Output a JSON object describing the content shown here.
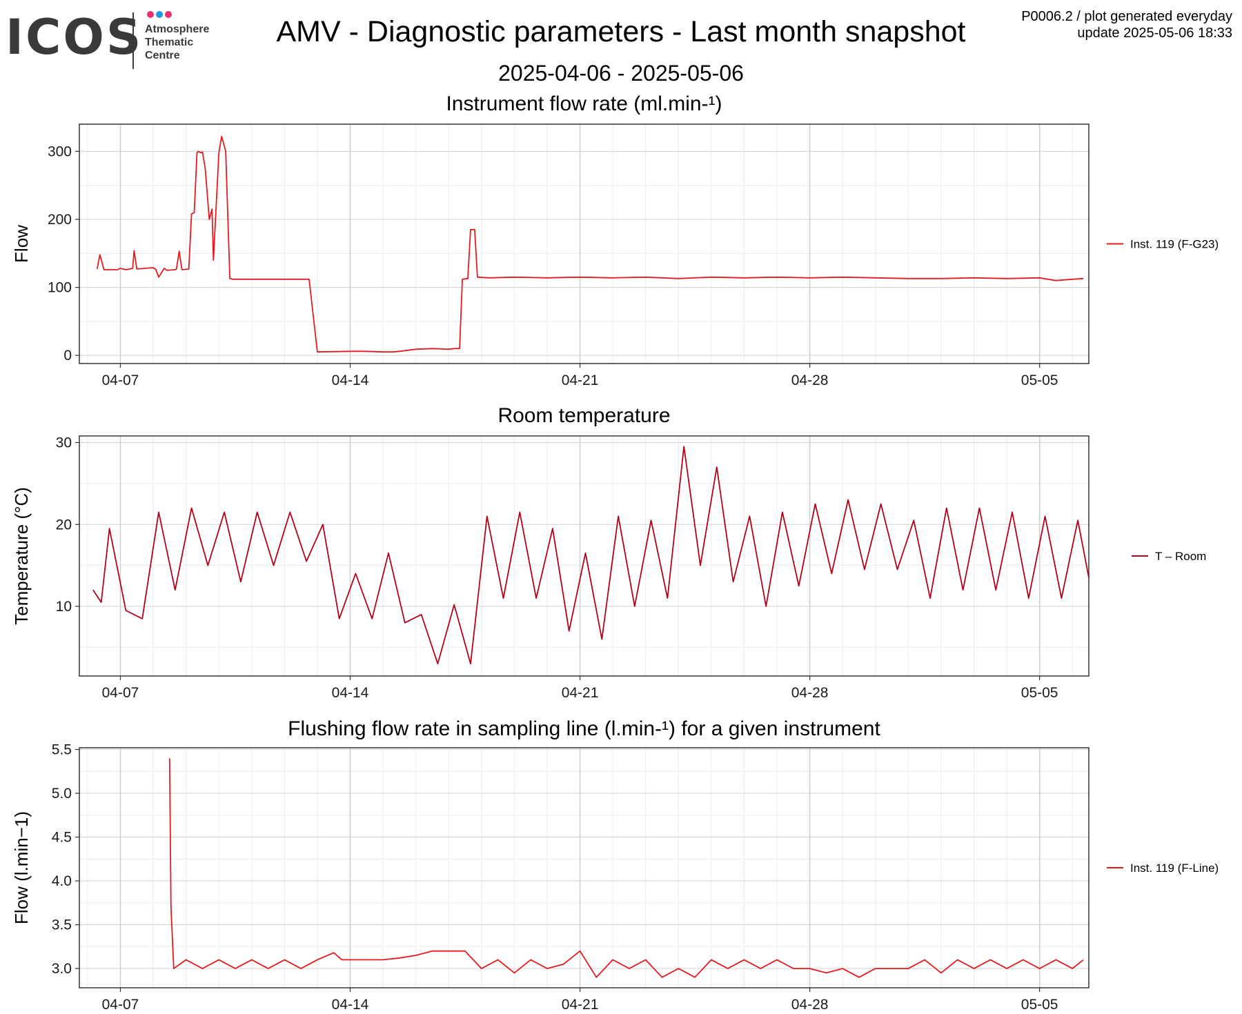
{
  "header": {
    "logo_text": "ICOS",
    "logo_sub": [
      "Atmosphere",
      "Thematic",
      "Centre"
    ],
    "title": "AMV - Diagnostic parameters - Last month snapshot",
    "subtitle": "2025-04-06 - 2025-05-06",
    "meta_line1": "P0006.2 / plot generated everyday",
    "meta_line2": "update  2025-05-06 18:33"
  },
  "colors": {
    "series_red": "#e41a1c",
    "temp_red": "#b3001b",
    "grid_major": "#d0d0d0",
    "grid_minor": "#ececec",
    "logo_pink": "#e8336d",
    "logo_blue": "#1f9ae0"
  },
  "chart_data": [
    {
      "type": "line",
      "title": "Instrument flow rate (ml.min-¹)",
      "xlabel": "",
      "ylabel": "Flow",
      "x_tick_labels": [
        "04-07",
        "04-14",
        "04-21",
        "04-28",
        "05-05"
      ],
      "xlim": [
        "2025-04-05T18:00",
        "2025-05-06T12:00"
      ],
      "ylim": [
        -12,
        340
      ],
      "y_ticks": [
        0,
        100,
        200,
        300
      ],
      "grid": true,
      "legend_position": "right",
      "series": [
        {
          "name": "Inst. 119 (F-G23)",
          "color": "#e41a1c",
          "x": [
            "2025-04-06 07:00",
            "2025-04-06 09:00",
            "2025-04-06 12:00",
            "2025-04-06 22:00",
            "2025-04-07 00:00",
            "2025-04-07 04:00",
            "2025-04-07 09:00",
            "2025-04-07 10:00",
            "2025-04-07 12:00",
            "2025-04-08 00:00",
            "2025-04-08 02:00",
            "2025-04-08 04:00",
            "2025-04-08 08:00",
            "2025-04-08 10:00",
            "2025-04-08 16:00",
            "2025-04-08 17:00",
            "2025-04-08 19:00",
            "2025-04-08 21:00",
            "2025-04-09 02:00",
            "2025-04-09 04:00",
            "2025-04-09 06:00",
            "2025-04-09 08:00",
            "2025-04-09 09:00",
            "2025-04-09 11:00",
            "2025-04-09 12:00",
            "2025-04-09 14:00",
            "2025-04-09 17:00",
            "2025-04-09 19:00",
            "2025-04-09 20:00",
            "2025-04-10 00:00",
            "2025-04-10 02:00",
            "2025-04-10 05:00",
            "2025-04-10 08:00",
            "2025-04-10 10:00",
            "2025-04-11 02:00",
            "2025-04-11 20:00",
            "2025-04-12 06:00",
            "2025-04-12 08:00",
            "2025-04-12 12:00",
            "2025-04-12 18:00",
            "2025-04-13 00:00",
            "2025-04-14 00:00",
            "2025-04-14 12:00",
            "2025-04-15 00:00",
            "2025-04-15 06:00",
            "2025-04-15 07:00",
            "2025-04-15 12:00",
            "2025-04-16 00:00",
            "2025-04-16 12:00",
            "2025-04-17 00:00",
            "2025-04-17 04:00",
            "2025-04-17 08:00",
            "2025-04-17 10:00",
            "2025-04-17 14:00",
            "2025-04-17 16:00",
            "2025-04-17 19:00",
            "2025-04-17 21:00",
            "2025-04-18 06:00",
            "2025-04-19 00:00",
            "2025-04-20 00:00",
            "2025-04-21 00:00",
            "2025-04-22 00:00",
            "2025-04-23 00:00",
            "2025-04-24 00:00",
            "2025-04-25 00:00",
            "2025-04-26 00:00",
            "2025-04-27 00:00",
            "2025-04-28 00:00",
            "2025-04-29 00:00",
            "2025-04-30 00:00",
            "2025-05-01 00:00",
            "2025-05-02 00:00",
            "2025-05-03 00:00",
            "2025-05-04 00:00",
            "2025-05-05 00:00",
            "2025-05-05 12:00",
            "2025-05-06 00:00",
            "2025-05-06 08:00"
          ],
          "values": [
            127,
            148,
            126,
            126,
            128,
            126,
            128,
            154,
            127,
            129,
            126,
            115,
            128,
            125,
            126,
            127,
            153,
            126,
            127,
            208,
            210,
            298,
            300,
            298,
            299,
            275,
            200,
            215,
            140,
            298,
            322,
            300,
            113,
            112,
            112,
            112,
            112,
            112,
            112,
            112,
            5,
            6,
            6,
            5,
            5,
            5,
            6,
            9,
            10,
            9,
            10,
            10,
            112,
            113,
            185,
            185,
            115,
            114,
            115,
            114,
            115,
            114,
            115,
            113,
            115,
            114,
            115,
            114,
            115,
            114,
            113,
            113,
            114,
            113,
            114,
            110,
            112,
            113
          ]
        }
      ]
    },
    {
      "type": "line",
      "title": "Room temperature",
      "xlabel": "",
      "ylabel": "Temperature (°C)",
      "x_tick_labels": [
        "04-07",
        "04-14",
        "04-21",
        "04-28",
        "05-05"
      ],
      "xlim": [
        "2025-04-05T18:00",
        "2025-05-06T12:00"
      ],
      "ylim": [
        1.5,
        30.8
      ],
      "y_ticks": [
        10,
        20,
        30
      ],
      "grid": true,
      "legend_position": "right",
      "series": [
        {
          "name": "T – Room",
          "color": "#b3001b",
          "x": [
            "2025-04-06 04:00",
            "2025-04-06 10:00",
            "2025-04-06 16:00",
            "2025-04-07 04:00",
            "2025-04-07 16:00",
            "2025-04-08 04:00",
            "2025-04-08 16:00",
            "2025-04-09 04:00",
            "2025-04-09 16:00",
            "2025-04-10 04:00",
            "2025-04-10 16:00",
            "2025-04-11 04:00",
            "2025-04-11 16:00",
            "2025-04-12 04:00",
            "2025-04-12 16:00",
            "2025-04-13 04:00",
            "2025-04-13 16:00",
            "2025-04-14 04:00",
            "2025-04-14 16:00",
            "2025-04-15 04:00",
            "2025-04-15 16:00",
            "2025-04-16 04:00",
            "2025-04-16 16:00",
            "2025-04-17 04:00",
            "2025-04-17 16:00",
            "2025-04-18 04:00",
            "2025-04-18 16:00",
            "2025-04-19 04:00",
            "2025-04-19 16:00",
            "2025-04-20 04:00",
            "2025-04-20 16:00",
            "2025-04-21 04:00",
            "2025-04-21 16:00",
            "2025-04-22 04:00",
            "2025-04-22 16:00",
            "2025-04-23 04:00",
            "2025-04-23 16:00",
            "2025-04-24 04:00",
            "2025-04-24 16:00",
            "2025-04-25 04:00",
            "2025-04-25 16:00",
            "2025-04-26 04:00",
            "2025-04-26 16:00",
            "2025-04-27 04:00",
            "2025-04-27 16:00",
            "2025-04-28 04:00",
            "2025-04-28 16:00",
            "2025-04-29 04:00",
            "2025-04-29 16:00",
            "2025-04-30 04:00",
            "2025-04-30 16:00",
            "2025-05-01 04:00",
            "2025-05-01 16:00",
            "2025-05-02 04:00",
            "2025-05-02 16:00",
            "2025-05-03 04:00",
            "2025-05-03 16:00",
            "2025-05-04 04:00",
            "2025-05-04 16:00",
            "2025-05-05 04:00",
            "2025-05-05 16:00",
            "2025-05-06 04:00",
            "2025-05-06 12:00"
          ],
          "values": [
            12,
            10.5,
            19.5,
            9.5,
            8.5,
            21.5,
            12,
            22,
            15,
            21.5,
            13,
            21.5,
            15,
            21.5,
            15.5,
            20,
            8.5,
            14,
            8.5,
            16.5,
            8,
            9,
            3,
            10.2,
            3,
            21,
            11,
            21.5,
            11,
            19.5,
            7,
            16.5,
            6,
            21,
            10,
            20.5,
            11,
            29.5,
            15,
            27,
            13,
            21,
            10,
            21.5,
            12.5,
            22.5,
            14,
            23,
            14.5,
            22.5,
            14.5,
            20.5,
            11,
            22,
            12,
            22,
            12,
            21.5,
            11,
            21,
            11,
            20.5,
            13.5
          ]
        }
      ]
    },
    {
      "type": "line",
      "title": "Flushing flow rate in sampling line (l.min-¹) for a given instrument",
      "xlabel": "",
      "ylabel": "Flow (l.min−1)",
      "x_tick_labels": [
        "04-07",
        "04-14",
        "04-21",
        "04-28",
        "05-05"
      ],
      "xlim": [
        "2025-04-05T18:00",
        "2025-05-06T12:00"
      ],
      "ylim": [
        2.78,
        5.52
      ],
      "y_ticks": [
        3.0,
        3.5,
        4.0,
        4.5,
        5.0,
        5.5
      ],
      "grid": true,
      "legend_position": "right",
      "series": [
        {
          "name": "Inst. 119 (F-Line)",
          "color": "#e41a1c",
          "x": [
            "2025-04-08 12:00",
            "2025-04-08 13:00",
            "2025-04-08 15:00",
            "2025-04-09 00:00",
            "2025-04-09 12:00",
            "2025-04-10 00:00",
            "2025-04-10 12:00",
            "2025-04-11 00:00",
            "2025-04-11 12:00",
            "2025-04-12 00:00",
            "2025-04-12 12:00",
            "2025-04-13 00:00",
            "2025-04-13 12:00",
            "2025-04-13 18:00",
            "2025-04-14 00:00",
            "2025-04-14 12:00",
            "2025-04-15 00:00",
            "2025-04-15 12:00",
            "2025-04-16 00:00",
            "2025-04-16 12:00",
            "2025-04-17 00:00",
            "2025-04-17 12:00",
            "2025-04-18 00:00",
            "2025-04-18 12:00",
            "2025-04-19 00:00",
            "2025-04-19 12:00",
            "2025-04-20 00:00",
            "2025-04-20 12:00",
            "2025-04-21 00:00",
            "2025-04-21 12:00",
            "2025-04-22 00:00",
            "2025-04-22 12:00",
            "2025-04-23 00:00",
            "2025-04-23 12:00",
            "2025-04-24 00:00",
            "2025-04-24 12:00",
            "2025-04-25 00:00",
            "2025-04-25 12:00",
            "2025-04-26 00:00",
            "2025-04-26 12:00",
            "2025-04-27 00:00",
            "2025-04-27 12:00",
            "2025-04-28 00:00",
            "2025-04-28 12:00",
            "2025-04-29 00:00",
            "2025-04-29 12:00",
            "2025-04-30 00:00",
            "2025-04-30 12:00",
            "2025-05-01 00:00",
            "2025-05-01 12:00",
            "2025-05-02 00:00",
            "2025-05-02 12:00",
            "2025-05-03 00:00",
            "2025-05-03 12:00",
            "2025-05-04 00:00",
            "2025-05-04 12:00",
            "2025-05-05 00:00",
            "2025-05-05 12:00",
            "2025-05-06 00:00",
            "2025-05-06 08:00"
          ],
          "values": [
            5.4,
            3.7,
            3.0,
            3.1,
            3.0,
            3.1,
            3.0,
            3.1,
            3.0,
            3.1,
            3.0,
            3.1,
            3.18,
            3.1,
            3.1,
            3.1,
            3.1,
            3.12,
            3.15,
            3.2,
            3.2,
            3.2,
            3.0,
            3.1,
            2.95,
            3.1,
            3.0,
            3.05,
            3.2,
            2.9,
            3.1,
            3.0,
            3.1,
            2.9,
            3.0,
            2.9,
            3.1,
            3.0,
            3.1,
            3.0,
            3.1,
            3.0,
            3.0,
            2.95,
            3.0,
            2.9,
            3.0,
            3.0,
            3.0,
            3.1,
            2.95,
            3.1,
            3.0,
            3.1,
            3.0,
            3.1,
            3.0,
            3.1,
            3.0,
            3.1
          ]
        }
      ]
    }
  ]
}
